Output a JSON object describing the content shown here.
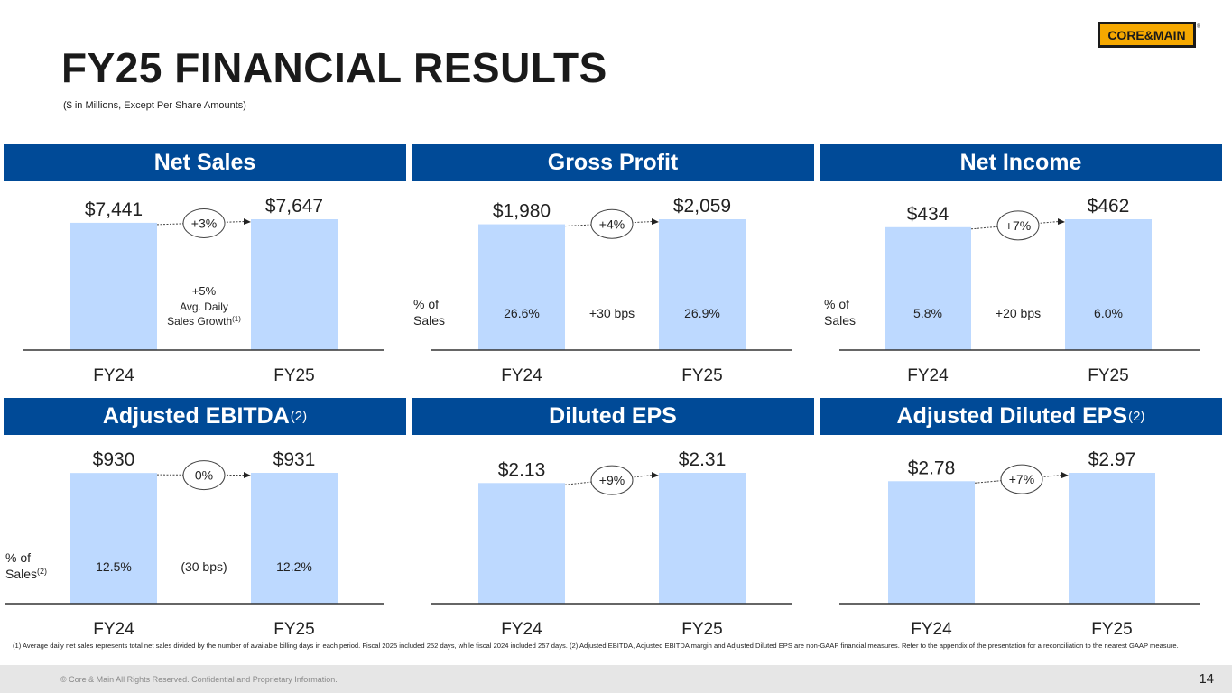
{
  "title": "FY25 FINANCIAL RESULTS",
  "subtitle": "($ in Millions, Except Per Share Amounts)",
  "logo": {
    "left": "CORE",
    "amp": "&",
    "right": "MAIN",
    "mark": "®"
  },
  "colors": {
    "header": "#004a97",
    "bar": "#bdd9ff",
    "logo_fill": "#f5a800",
    "logo_text": "#1a1a1a"
  },
  "chart_data": [
    {
      "type": "bar",
      "title": "Net Sales",
      "title_sup": "",
      "categories": [
        "FY24",
        "FY25"
      ],
      "values": [
        7441,
        7647
      ],
      "ylim": [
        0,
        7647
      ],
      "value_labels": [
        "$7,441",
        "$7,647"
      ],
      "growth": "+3%",
      "pct_axis_label": [],
      "pct_labels": [],
      "pct_change": "",
      "note": [
        "+5%",
        "Avg. Daily",
        "Sales Growth"
      ],
      "note_sup": "(1)"
    },
    {
      "type": "bar",
      "title": "Gross Profit",
      "title_sup": "",
      "categories": [
        "FY24",
        "FY25"
      ],
      "values": [
        1980,
        2059
      ],
      "ylim": [
        0,
        2059
      ],
      "value_labels": [
        "$1,980",
        "$2,059"
      ],
      "growth": "+4%",
      "pct_axis_label": [
        "% of",
        "Sales"
      ],
      "pct_axis_sup": "",
      "pct_labels": [
        "26.6%",
        "26.9%"
      ],
      "pct_change": "+30 bps"
    },
    {
      "type": "bar",
      "title": "Net Income",
      "title_sup": "",
      "categories": [
        "FY24",
        "FY25"
      ],
      "values": [
        434,
        462
      ],
      "ylim": [
        0,
        462
      ],
      "value_labels": [
        "$434",
        "$462"
      ],
      "growth": "+7%",
      "pct_axis_label": [
        "% of",
        "Sales"
      ],
      "pct_axis_sup": "",
      "pct_labels": [
        "5.8%",
        "6.0%"
      ],
      "pct_change": "+20 bps"
    },
    {
      "type": "bar",
      "title": "Adjusted EBITDA",
      "title_sup": "(2)",
      "categories": [
        "FY24",
        "FY25"
      ],
      "values": [
        930,
        931
      ],
      "ylim": [
        0,
        931
      ],
      "value_labels": [
        "$930",
        "$931"
      ],
      "growth": "0%",
      "pct_axis_label": [
        "% of",
        "Sales"
      ],
      "pct_axis_sup": "(2)",
      "pct_labels": [
        "12.5%",
        "12.2%"
      ],
      "pct_change": "(30 bps)"
    },
    {
      "type": "bar",
      "title": "Diluted EPS",
      "title_sup": "",
      "categories": [
        "FY24",
        "FY25"
      ],
      "values": [
        2.13,
        2.31
      ],
      "ylim": [
        0,
        2.31
      ],
      "value_labels": [
        "$2.13",
        "$2.31"
      ],
      "growth": "+9%",
      "pct_axis_label": [],
      "pct_labels": [],
      "pct_change": ""
    },
    {
      "type": "bar",
      "title": "Adjusted Diluted EPS",
      "title_sup": "(2)",
      "categories": [
        "FY24",
        "FY25"
      ],
      "values": [
        2.78,
        2.97
      ],
      "ylim": [
        0,
        2.97
      ],
      "value_labels": [
        "$2.78",
        "$2.97"
      ],
      "growth": "+7%",
      "pct_axis_label": [],
      "pct_labels": [],
      "pct_change": ""
    }
  ],
  "footnote": "(1) Average daily net sales represents total net sales divided by the number of available billing days in each period. Fiscal 2025 included 252 days, while fiscal 2024 included 257 days. (2) Adjusted EBITDA, Adjusted EBITDA margin and Adjusted Diluted EPS are non-GAAP financial measures. Refer to the appendix of the presentation for a reconciliation to the nearest GAAP measure.",
  "copyright": "© Core & Main  All Rights Reserved. Confidential and Proprietary Information.",
  "page_number": "14"
}
